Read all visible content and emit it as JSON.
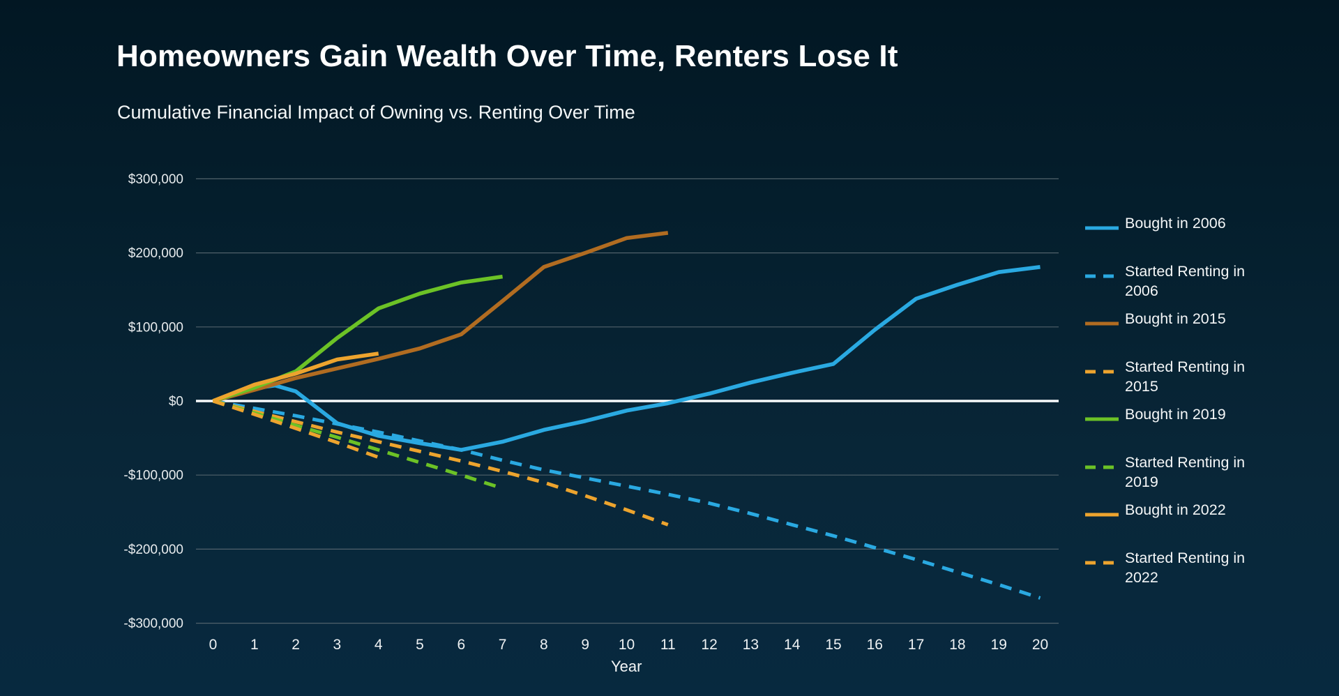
{
  "title": "Homeowners Gain Wealth Over Time, Renters Lose It",
  "subtitle": "Cumulative Financial Impact of Owning vs. Renting Over Time",
  "colors": {
    "blue": "#2aa9e1",
    "brown": "#b16c21",
    "orange": "#eda42e",
    "green": "#6cc226",
    "grid": "#5e6d75",
    "zero_line": "#f8fafb",
    "axis_text": "#e8ecee",
    "title_text": "#ffffff"
  },
  "chart_data": {
    "type": "line",
    "title": "Homeowners Gain Wealth Over Time, Renters Lose It",
    "subtitle": "Cumulative Financial Impact of Owning vs. Renting Over Time",
    "xlabel": "Year",
    "ylabel": "",
    "xlim": [
      0,
      20
    ],
    "ylim": [
      -300000,
      300000
    ],
    "grid": true,
    "legend_position": "right",
    "x_ticks": [
      0,
      1,
      2,
      3,
      4,
      5,
      6,
      7,
      8,
      9,
      10,
      11,
      12,
      13,
      14,
      15,
      16,
      17,
      18,
      19,
      20
    ],
    "y_ticks": [
      {
        "label": "$300,000",
        "value": 300000
      },
      {
        "label": "$200,000",
        "value": 200000
      },
      {
        "label": "$100,000",
        "value": 100000
      },
      {
        "label": "$0",
        "value": 0
      },
      {
        "label": "-$100,000",
        "value": -100000
      },
      {
        "label": "-$200,000",
        "value": -200000
      },
      {
        "label": "-$300,000",
        "value": -300000
      }
    ],
    "series": [
      {
        "name": "Started Renting in 2006",
        "color": "blue",
        "style": "dashed",
        "x": [
          0,
          1,
          2,
          3,
          4,
          5,
          6,
          7,
          8,
          9,
          10,
          11,
          12,
          13,
          14,
          15,
          16,
          17,
          18,
          19,
          20
        ],
        "y": [
          0,
          -10000,
          -20000,
          -31000,
          -42000,
          -54000,
          -66000,
          -80000,
          -93000,
          -104000,
          -115000,
          -126000,
          -138000,
          -152000,
          -167000,
          -182000,
          -198000,
          -214000,
          -231000,
          -248000,
          -266000
        ]
      },
      {
        "name": "Bought in 2006",
        "color": "blue",
        "style": "solid",
        "x": [
          0,
          1,
          1.5,
          2,
          3,
          4,
          5,
          6,
          7,
          8,
          9,
          10,
          11,
          12,
          13,
          14,
          15,
          16,
          17,
          18,
          19,
          20
        ],
        "y": [
          0,
          17000,
          21000,
          13000,
          -30000,
          -47000,
          -57000,
          -66000,
          -55000,
          -39000,
          -27000,
          -13000,
          -3000,
          10000,
          25000,
          38000,
          50000,
          96000,
          138000,
          157000,
          174000,
          181000
        ]
      },
      {
        "name": "Started Renting in 2015",
        "color": "orange",
        "style": "dashed",
        "x": [
          0,
          1,
          2,
          3,
          4,
          5,
          6,
          7,
          8,
          9,
          10,
          11
        ],
        "y": [
          0,
          -14000,
          -28000,
          -42000,
          -55000,
          -68000,
          -81000,
          -95000,
          -110000,
          -128000,
          -147000,
          -167000
        ]
      },
      {
        "name": "Bought in 2015",
        "color": "brown",
        "style": "solid",
        "x": [
          0,
          1,
          2,
          3,
          4,
          5,
          6,
          7,
          8,
          9,
          10,
          11
        ],
        "y": [
          0,
          15000,
          31000,
          44000,
          57000,
          71000,
          90000,
          135000,
          181000,
          200000,
          220000,
          227000
        ]
      },
      {
        "name": "Started Renting in 2019",
        "color": "green",
        "style": "dashed",
        "x": [
          0,
          1,
          2,
          3,
          4,
          5,
          6,
          7
        ],
        "y": [
          0,
          -16000,
          -33000,
          -49000,
          -66000,
          -83000,
          -100000,
          -118000
        ]
      },
      {
        "name": "Bought in 2019",
        "color": "green",
        "style": "solid",
        "x": [
          0,
          1,
          2,
          3,
          4,
          5,
          6,
          7
        ],
        "y": [
          0,
          18000,
          40000,
          85000,
          125000,
          145000,
          160000,
          168000
        ]
      },
      {
        "name": "Started Renting in 2022",
        "color": "orange",
        "style": "dashed",
        "x": [
          0,
          1,
          2,
          3,
          4
        ],
        "y": [
          0,
          -18000,
          -37000,
          -56000,
          -76000
        ]
      },
      {
        "name": "Bought in 2022",
        "color": "orange",
        "style": "solid",
        "x": [
          0,
          1,
          2,
          3,
          4
        ],
        "y": [
          0,
          22000,
          37000,
          56000,
          64000
        ]
      }
    ],
    "legend": [
      {
        "label": "Bought in 2006",
        "color": "blue",
        "style": "solid"
      },
      {
        "label": "Started Renting in 2006",
        "color": "blue",
        "style": "dashed"
      },
      {
        "label": "Bought in 2015",
        "color": "brown",
        "style": "solid"
      },
      {
        "label": "Started Renting in 2015",
        "color": "orange",
        "style": "dashed"
      },
      {
        "label": "Bought in 2019",
        "color": "green",
        "style": "solid"
      },
      {
        "label": "Started Renting in 2019",
        "color": "green",
        "style": "dashed"
      },
      {
        "label": "Bought in 2022",
        "color": "orange",
        "style": "solid"
      },
      {
        "label": "Started Renting in 2022",
        "color": "orange",
        "style": "dashed"
      }
    ]
  }
}
